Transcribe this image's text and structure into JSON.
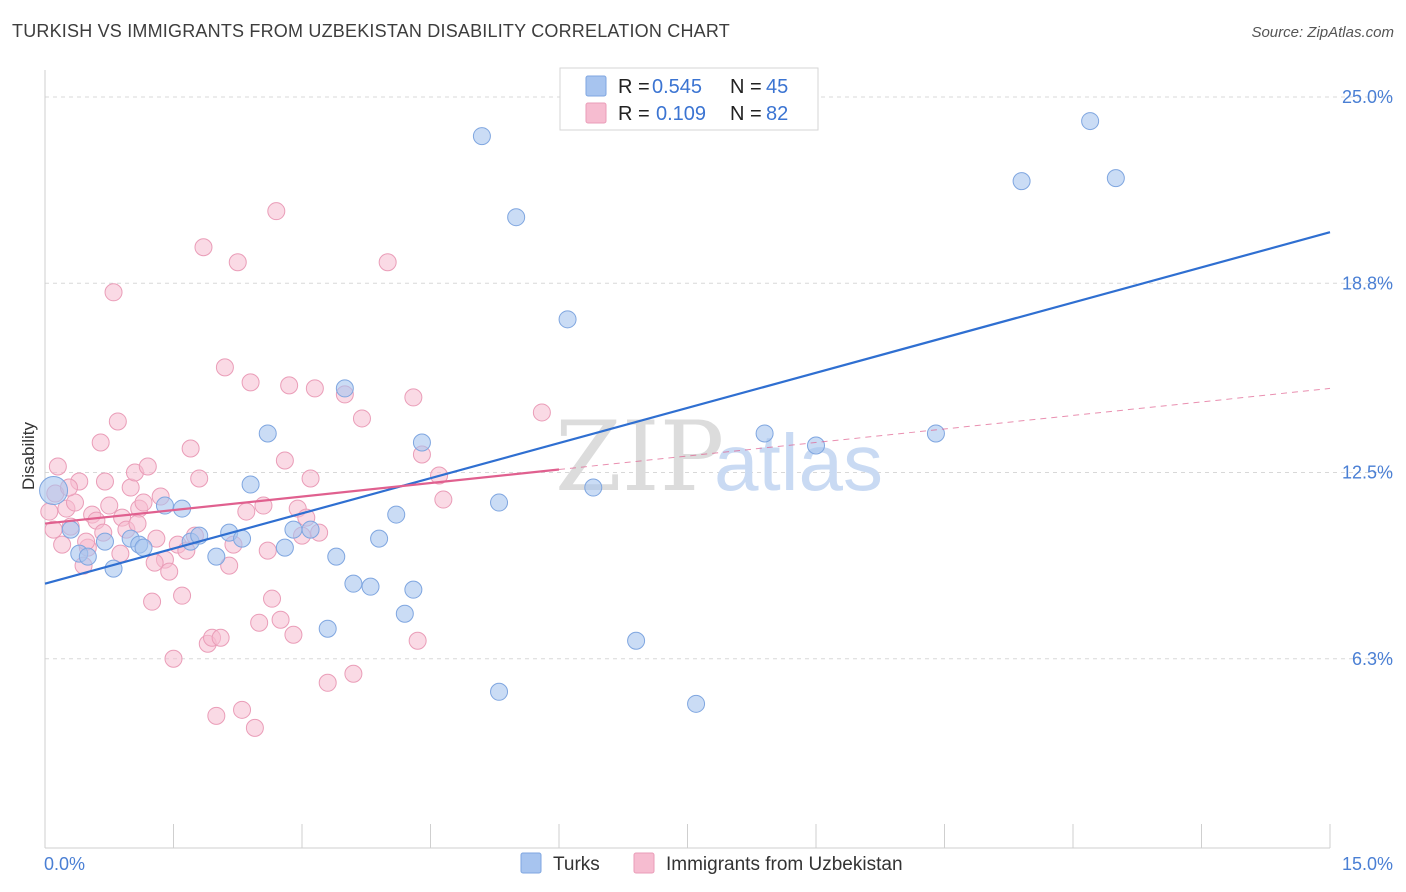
{
  "title": "TURKISH VS IMMIGRANTS FROM UZBEKISTAN DISABILITY CORRELATION CHART",
  "source": "Source: ZipAtlas.com",
  "watermark": {
    "zip": "ZIP",
    "atlas": "atlas"
  },
  "colors": {
    "blue": "#a7c4ef",
    "blue_stroke": "#7fa6e0",
    "blue_line": "#2f6fd1",
    "pink": "#f6bcd0",
    "pink_stroke": "#ea9db8",
    "pink_line": "#e0608f",
    "grid": "#d8d8d8",
    "axis_label": "#4a7fd4"
  },
  "legend": {
    "rows": [
      {
        "series": "Turks",
        "r_label": "R =",
        "r_value": "0.545",
        "n_label": "N =",
        "n_value": "45"
      },
      {
        "series": "Immigrants from Uzbekistan",
        "r_label": "R =",
        "r_value": "0.109",
        "n_label": "N =",
        "n_value": "82"
      }
    ]
  },
  "chart_data": {
    "type": "scatter",
    "title": "TURKISH VS IMMIGRANTS FROM UZBEKISTAN DISABILITY CORRELATION CHART",
    "xlabel": "",
    "ylabel": "Disability",
    "xlim": [
      0,
      15
    ],
    "ylim": [
      0,
      25.9
    ],
    "x_tick_labels": [
      "0.0%",
      "15.0%"
    ],
    "y_ticks": [
      6.3,
      12.5,
      18.8,
      25.0
    ],
    "y_tick_labels": [
      "6.3%",
      "12.5%",
      "18.8%",
      "25.0%"
    ],
    "grid": true,
    "series": [
      {
        "name": "Turks",
        "r": 0.545,
        "n": 45,
        "trend": {
          "x": [
            0,
            15
          ],
          "y": [
            8.8,
            20.5
          ],
          "dashed_extension": false
        },
        "points": [
          [
            0.1,
            11.9
          ],
          [
            0.3,
            10.6
          ],
          [
            0.4,
            9.8
          ],
          [
            0.5,
            9.7
          ],
          [
            0.7,
            10.2
          ],
          [
            0.8,
            9.3
          ],
          [
            1.0,
            10.3
          ],
          [
            1.1,
            10.1
          ],
          [
            1.15,
            10.0
          ],
          [
            1.4,
            11.4
          ],
          [
            1.6,
            11.3
          ],
          [
            1.7,
            10.2
          ],
          [
            1.8,
            10.4
          ],
          [
            2.0,
            9.7
          ],
          [
            2.15,
            10.5
          ],
          [
            2.3,
            10.3
          ],
          [
            2.4,
            12.1
          ],
          [
            2.6,
            13.8
          ],
          [
            2.8,
            10.0
          ],
          [
            2.9,
            10.6
          ],
          [
            3.1,
            10.6
          ],
          [
            3.3,
            7.3
          ],
          [
            3.4,
            9.7
          ],
          [
            3.5,
            15.3
          ],
          [
            3.6,
            8.8
          ],
          [
            3.8,
            8.7
          ],
          [
            3.9,
            10.3
          ],
          [
            4.1,
            11.1
          ],
          [
            4.2,
            7.8
          ],
          [
            4.3,
            8.6
          ],
          [
            4.4,
            13.5
          ],
          [
            5.1,
            23.7
          ],
          [
            5.3,
            11.5
          ],
          [
            5.3,
            5.2
          ],
          [
            5.5,
            21.0
          ],
          [
            6.1,
            17.6
          ],
          [
            6.4,
            12.0
          ],
          [
            6.9,
            6.9
          ],
          [
            7.6,
            4.8
          ],
          [
            8.4,
            13.8
          ],
          [
            9.0,
            13.4
          ],
          [
            10.4,
            13.8
          ],
          [
            11.4,
            22.2
          ],
          [
            12.2,
            24.2
          ],
          [
            12.5,
            22.3
          ]
        ]
      },
      {
        "name": "Immigrants from Uzbekistan",
        "r": 0.109,
        "n": 82,
        "trend": {
          "x": [
            0,
            6.0
          ],
          "y": [
            10.8,
            12.6
          ],
          "extension_x": [
            6.0,
            15
          ],
          "extension_y": [
            12.6,
            15.3
          ]
        },
        "points": [
          [
            0.05,
            11.2
          ],
          [
            0.1,
            10.6
          ],
          [
            0.15,
            12.7
          ],
          [
            0.2,
            10.1
          ],
          [
            0.25,
            11.3
          ],
          [
            0.3,
            10.7
          ],
          [
            0.35,
            11.5
          ],
          [
            0.4,
            12.2
          ],
          [
            0.45,
            9.4
          ],
          [
            0.5,
            10.0
          ],
          [
            0.55,
            11.1
          ],
          [
            0.6,
            10.9
          ],
          [
            0.65,
            13.5
          ],
          [
            0.7,
            12.2
          ],
          [
            0.75,
            11.4
          ],
          [
            0.8,
            18.5
          ],
          [
            0.85,
            14.2
          ],
          [
            0.9,
            11.0
          ],
          [
            0.95,
            10.6
          ],
          [
            1.0,
            12.0
          ],
          [
            1.05,
            12.5
          ],
          [
            1.1,
            11.3
          ],
          [
            1.15,
            11.5
          ],
          [
            1.2,
            12.7
          ],
          [
            1.25,
            8.2
          ],
          [
            1.3,
            10.3
          ],
          [
            1.35,
            11.7
          ],
          [
            1.4,
            9.6
          ],
          [
            1.45,
            9.2
          ],
          [
            1.5,
            6.3
          ],
          [
            1.55,
            10.1
          ],
          [
            1.6,
            8.4
          ],
          [
            1.65,
            9.9
          ],
          [
            1.7,
            13.3
          ],
          [
            1.75,
            10.4
          ],
          [
            1.8,
            12.3
          ],
          [
            1.85,
            20.0
          ],
          [
            1.9,
            6.8
          ],
          [
            1.95,
            7.0
          ],
          [
            2.0,
            4.4
          ],
          [
            2.05,
            7.0
          ],
          [
            2.1,
            16.0
          ],
          [
            2.15,
            9.4
          ],
          [
            2.2,
            10.1
          ],
          [
            2.25,
            19.5
          ],
          [
            2.3,
            4.6
          ],
          [
            2.35,
            11.2
          ],
          [
            2.4,
            15.5
          ],
          [
            2.45,
            4.0
          ],
          [
            2.5,
            7.5
          ],
          [
            2.55,
            11.4
          ],
          [
            2.6,
            9.9
          ],
          [
            2.65,
            8.3
          ],
          [
            2.7,
            21.2
          ],
          [
            2.75,
            7.6
          ],
          [
            2.8,
            12.9
          ],
          [
            2.85,
            15.4
          ],
          [
            2.9,
            7.1
          ],
          [
            2.95,
            11.3
          ],
          [
            3.0,
            10.4
          ],
          [
            3.05,
            11.0
          ],
          [
            3.1,
            12.3
          ],
          [
            3.15,
            15.3
          ],
          [
            3.2,
            10.5
          ],
          [
            3.3,
            5.5
          ],
          [
            3.5,
            15.1
          ],
          [
            3.6,
            5.8
          ],
          [
            3.7,
            14.3
          ],
          [
            4.0,
            19.5
          ],
          [
            4.3,
            15.0
          ],
          [
            4.35,
            6.9
          ],
          [
            4.4,
            13.1
          ],
          [
            4.6,
            12.4
          ],
          [
            4.65,
            11.6
          ],
          [
            5.8,
            14.5
          ],
          [
            0.12,
            11.8
          ],
          [
            0.28,
            12.0
          ],
          [
            0.48,
            10.2
          ],
          [
            0.68,
            10.5
          ],
          [
            0.88,
            9.8
          ],
          [
            1.08,
            10.8
          ],
          [
            1.28,
            9.5
          ]
        ]
      }
    ]
  }
}
